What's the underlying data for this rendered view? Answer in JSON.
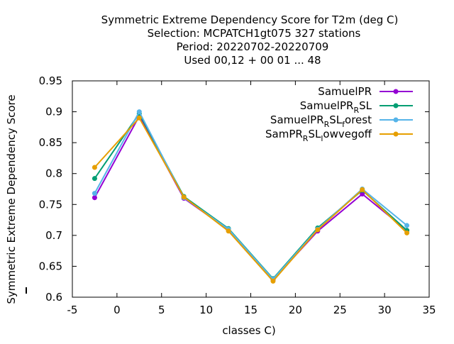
{
  "chart_data": {
    "type": "line",
    "title_lines": [
      "Symmetric Extreme Dependency Score  for T2m (deg C)",
      "Selection: MCPATCH1gt075    327 stations",
      "Period: 20220702-20220709",
      "Used  00,12  + 00 01 ... 48"
    ],
    "xlabel": "classes C)",
    "ylabel": "Symmetric Extreme Dependency Score",
    "xlim": [
      -5,
      35
    ],
    "ylim": [
      0.6,
      0.95
    ],
    "x_ticks": [
      "-5",
      "0",
      "5",
      "10",
      "15",
      "20",
      "25",
      "30",
      "35"
    ],
    "y_ticks": [
      "0.6",
      "0.65",
      "0.7",
      "0.75",
      "0.8",
      "0.85",
      "0.9",
      "0.95"
    ],
    "grid": false,
    "legend_position": "top-right",
    "x": [
      -2.5,
      2.5,
      7.5,
      12.5,
      17.5,
      22.5,
      27.5,
      32.5
    ],
    "series": [
      {
        "name": "SamuelPR",
        "legend": {
          "base": "SamuelPR",
          "sub": "",
          "tail": ""
        },
        "color": "#9400d3",
        "values": [
          0.761,
          0.893,
          0.76,
          0.709,
          0.628,
          0.707,
          0.767,
          0.708
        ]
      },
      {
        "name": "SamuelPR_RSL",
        "legend": {
          "base": "SamuelPR",
          "sub": "R",
          "tail": "SL"
        },
        "color": "#009e73",
        "values": [
          0.792,
          0.897,
          0.763,
          0.711,
          0.63,
          0.712,
          0.773,
          0.708
        ]
      },
      {
        "name": "SamuelPR_RSL_forest",
        "legend": {
          "base": "SamuelPR",
          "sub": "R",
          "tail": "SL",
          "sub2": "f",
          "tail2": "orest"
        },
        "color": "#56b4e9",
        "values": [
          0.768,
          0.9,
          0.761,
          0.71,
          0.629,
          0.71,
          0.775,
          0.716
        ]
      },
      {
        "name": "SamPR_RSL_lowvegoff",
        "legend": {
          "base": "SamPR",
          "sub": "R",
          "tail": "SL",
          "sub2": "l",
          "tail2": "owvegoff"
        },
        "color": "#e69f00",
        "values": [
          0.81,
          0.89,
          0.762,
          0.707,
          0.626,
          0.709,
          0.774,
          0.704
        ]
      }
    ]
  }
}
